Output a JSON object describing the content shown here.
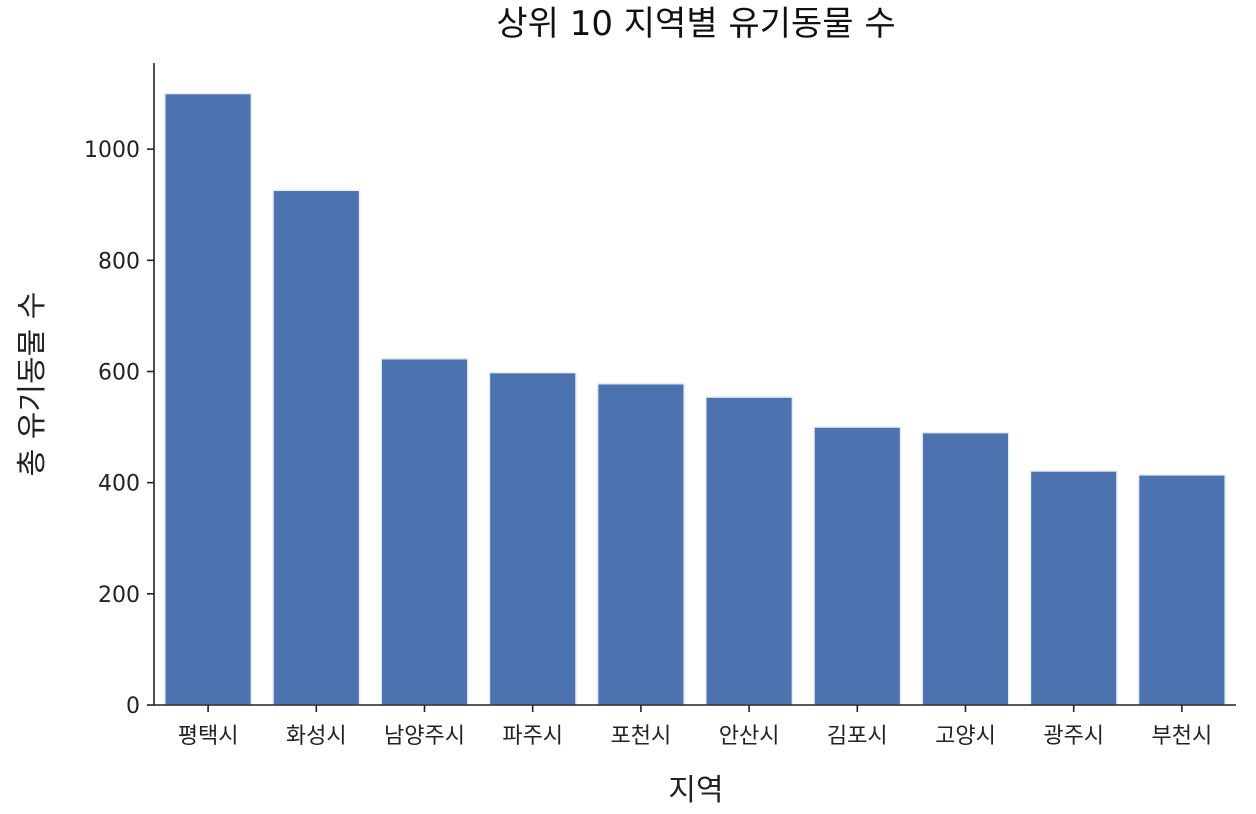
{
  "chart_data": {
    "type": "bar",
    "title": "상위 10 지역별 유기동물 수",
    "xlabel": "지역",
    "ylabel": "총 유기동물 수",
    "categories": [
      "평택시",
      "화성시",
      "남양주시",
      "파주시",
      "포천시",
      "안산시",
      "김포시",
      "고양시",
      "광주시",
      "부천시"
    ],
    "values": [
      1100,
      926,
      623,
      598,
      578,
      554,
      500,
      490,
      421,
      414
    ],
    "ylim": [
      0,
      1155
    ],
    "yticks": [
      0,
      200,
      400,
      600,
      800,
      1000
    ],
    "grid": false,
    "legend": "none",
    "colors": {
      "bar": "#4c72b0"
    }
  }
}
